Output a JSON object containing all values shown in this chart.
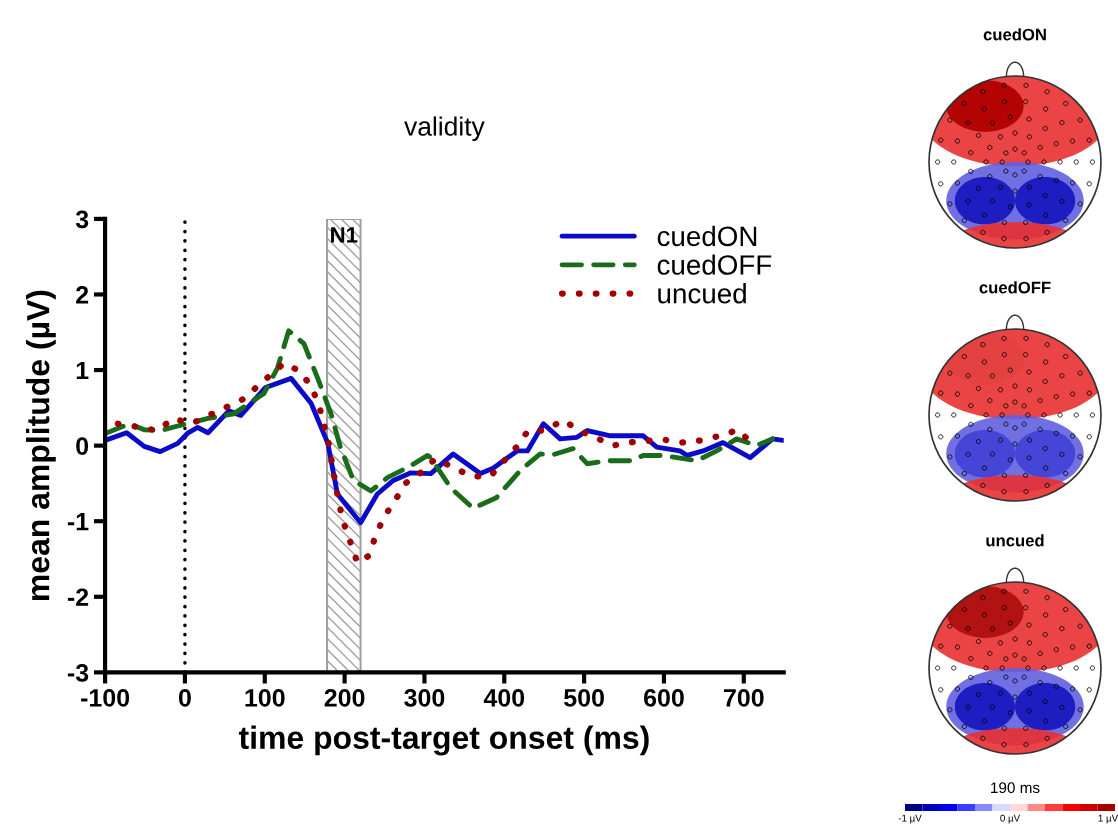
{
  "chart_data": {
    "type": "line",
    "title": "validity",
    "xlabel": "time post-target onset (ms)",
    "ylabel": "mean amplitude (µV)",
    "xlim": [
      -100,
      750
    ],
    "xticks": [
      -100,
      0,
      100,
      200,
      300,
      400,
      500,
      600,
      700
    ],
    "ylim": [
      -3,
      3
    ],
    "yticks": [
      -3,
      -2,
      -1,
      0,
      1,
      2,
      3
    ],
    "grid": false,
    "legend": "top right",
    "series": [
      {
        "name": "cuedON",
        "color": "#0a0ac8",
        "line_style": "solid",
        "x": [
          -100,
          -73,
          -51,
          -31,
          -9,
          4,
          16,
          29,
          55,
          70,
          101,
          133,
          158,
          179,
          191,
          220,
          241,
          261,
          283,
          308,
          336,
          370,
          386,
          416,
          429,
          449,
          470,
          491,
          504,
          533,
          574,
          591,
          620,
          629,
          649,
          674,
          708,
          736,
          749
        ],
        "values": [
          0.07,
          0.17,
          -0.01,
          -0.08,
          0.03,
          0.17,
          0.24,
          0.17,
          0.46,
          0.4,
          0.77,
          0.89,
          0.56,
          0.03,
          -0.64,
          -1.02,
          -0.64,
          -0.46,
          -0.36,
          -0.37,
          -0.11,
          -0.37,
          -0.3,
          -0.07,
          -0.07,
          0.29,
          0.09,
          0.11,
          0.2,
          0.13,
          0.13,
          -0.02,
          -0.07,
          -0.13,
          -0.07,
          0.04,
          -0.16,
          0.09,
          0.07
        ]
      },
      {
        "name": "cuedOFF",
        "color": "#1a6b1a",
        "line_style": "dashed",
        "x": [
          -100,
          -69,
          -51,
          -30,
          -9,
          29,
          61,
          99,
          116,
          130,
          149,
          166,
          183,
          195,
          211,
          233,
          254,
          279,
          304,
          308,
          333,
          361,
          390,
          420,
          445,
          461,
          486,
          504,
          529,
          558,
          574,
          599,
          641,
          666,
          691,
          716,
          736
        ],
        "values": [
          0.16,
          0.29,
          0.21,
          0.2,
          0.26,
          0.36,
          0.42,
          0.69,
          1.03,
          1.52,
          1.35,
          0.9,
          0.42,
          -0.03,
          -0.46,
          -0.6,
          -0.42,
          -0.29,
          -0.13,
          -0.16,
          -0.56,
          -0.83,
          -0.69,
          -0.33,
          -0.11,
          -0.12,
          -0.04,
          -0.24,
          -0.2,
          -0.2,
          -0.13,
          -0.13,
          -0.2,
          -0.07,
          0.09,
          0.0,
          0.09
        ]
      },
      {
        "name": "uncued",
        "color": "#a00000",
        "line_style": "dotted",
        "x": [
          -84,
          -34,
          -15,
          8,
          72,
          124,
          143,
          158,
          168,
          180,
          193,
          199,
          208,
          216,
          230,
          239,
          249,
          263,
          276,
          295,
          314,
          336,
          360,
          383,
          416,
          430,
          451,
          474,
          493,
          514,
          536,
          554,
          599,
          622,
          647,
          670,
          693,
          708
        ],
        "values": [
          0.29,
          0.2,
          0.36,
          0.29,
          0.61,
          1.09,
          0.99,
          0.79,
          0.53,
          0.03,
          -0.77,
          -1.03,
          -1.3,
          -1.55,
          -1.46,
          -1.19,
          -0.95,
          -0.73,
          -0.5,
          -0.36,
          -0.17,
          -0.29,
          -0.41,
          -0.4,
          -0.01,
          0.2,
          0.2,
          0.34,
          0.2,
          0.11,
          0.0,
          0.04,
          0.08,
          0.04,
          0.07,
          0.13,
          0.21,
          0.05
        ]
      }
    ],
    "ref_lines": [
      {
        "axis": "x",
        "value": 0,
        "color": "#000000",
        "line_style": "dotted"
      }
    ],
    "bands": [
      {
        "axis": "x",
        "from": 178,
        "to": 220,
        "label": "N1",
        "color": "#a0a0a0"
      }
    ],
    "annotations": [
      "cuedON",
      "cuedOFF",
      "uncued",
      "190 ms",
      "-1 µV",
      "0 µV",
      "1 µV"
    ]
  }
}
